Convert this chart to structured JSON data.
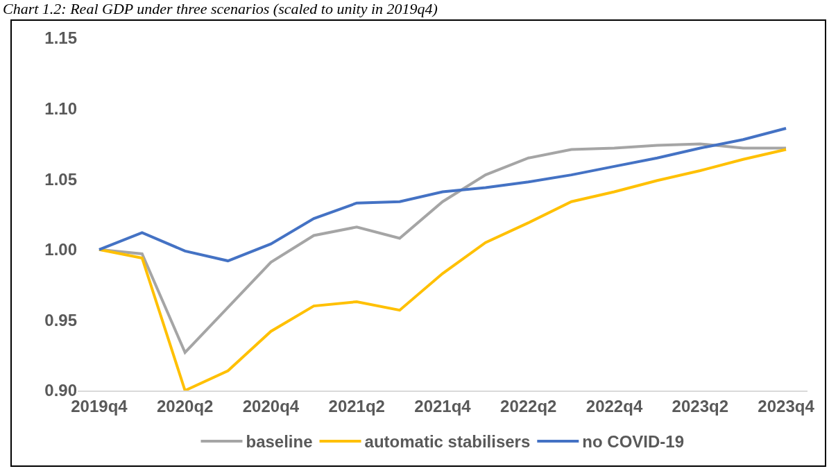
{
  "chart_data": {
    "type": "line",
    "title": "Chart 1.2: Real GDP under three scenarios (scaled to unity in 2019q4)",
    "categories": [
      "2019q4",
      null,
      "2020q2",
      null,
      "2020q4",
      null,
      "2021q2",
      null,
      "2021q4",
      null,
      "2022q2",
      null,
      "2022q4",
      null,
      "2023q2",
      null,
      "2023q4"
    ],
    "series": [
      {
        "name": "baseline",
        "color": "#a5a5a5",
        "values": [
          1.0,
          0.997,
          0.927,
          0.959,
          0.991,
          1.01,
          1.016,
          1.008,
          1.034,
          1.053,
          1.065,
          1.071,
          1.072,
          1.074,
          1.075,
          1.072,
          1.072
        ]
      },
      {
        "name": "automatic stabilisers",
        "color": "#ffc000",
        "values": [
          1.0,
          0.994,
          0.9,
          0.914,
          0.942,
          0.96,
          0.963,
          0.957,
          0.983,
          1.005,
          1.019,
          1.034,
          1.041,
          1.049,
          1.056,
          1.064,
          1.071
        ]
      },
      {
        "name": "no COVID-19",
        "color": "#4472c4",
        "values": [
          1.0,
          1.012,
          0.999,
          0.992,
          1.004,
          1.022,
          1.033,
          1.034,
          1.041,
          1.044,
          1.048,
          1.053,
          1.059,
          1.065,
          1.072,
          1.078,
          1.086
        ]
      }
    ],
    "ylim": [
      0.9,
      1.15
    ],
    "yticks": [
      {
        "value": 0.9,
        "label": "0.90"
      },
      {
        "value": 0.95,
        "label": "0.95"
      },
      {
        "value": 1.0,
        "label": "1.00"
      },
      {
        "value": 1.05,
        "label": "1.05"
      },
      {
        "value": 1.1,
        "label": "1.10"
      },
      {
        "value": 1.15,
        "label": "1.15"
      }
    ],
    "grid": false,
    "legend": "bottom",
    "marker": "none",
    "line_style": "solid"
  }
}
